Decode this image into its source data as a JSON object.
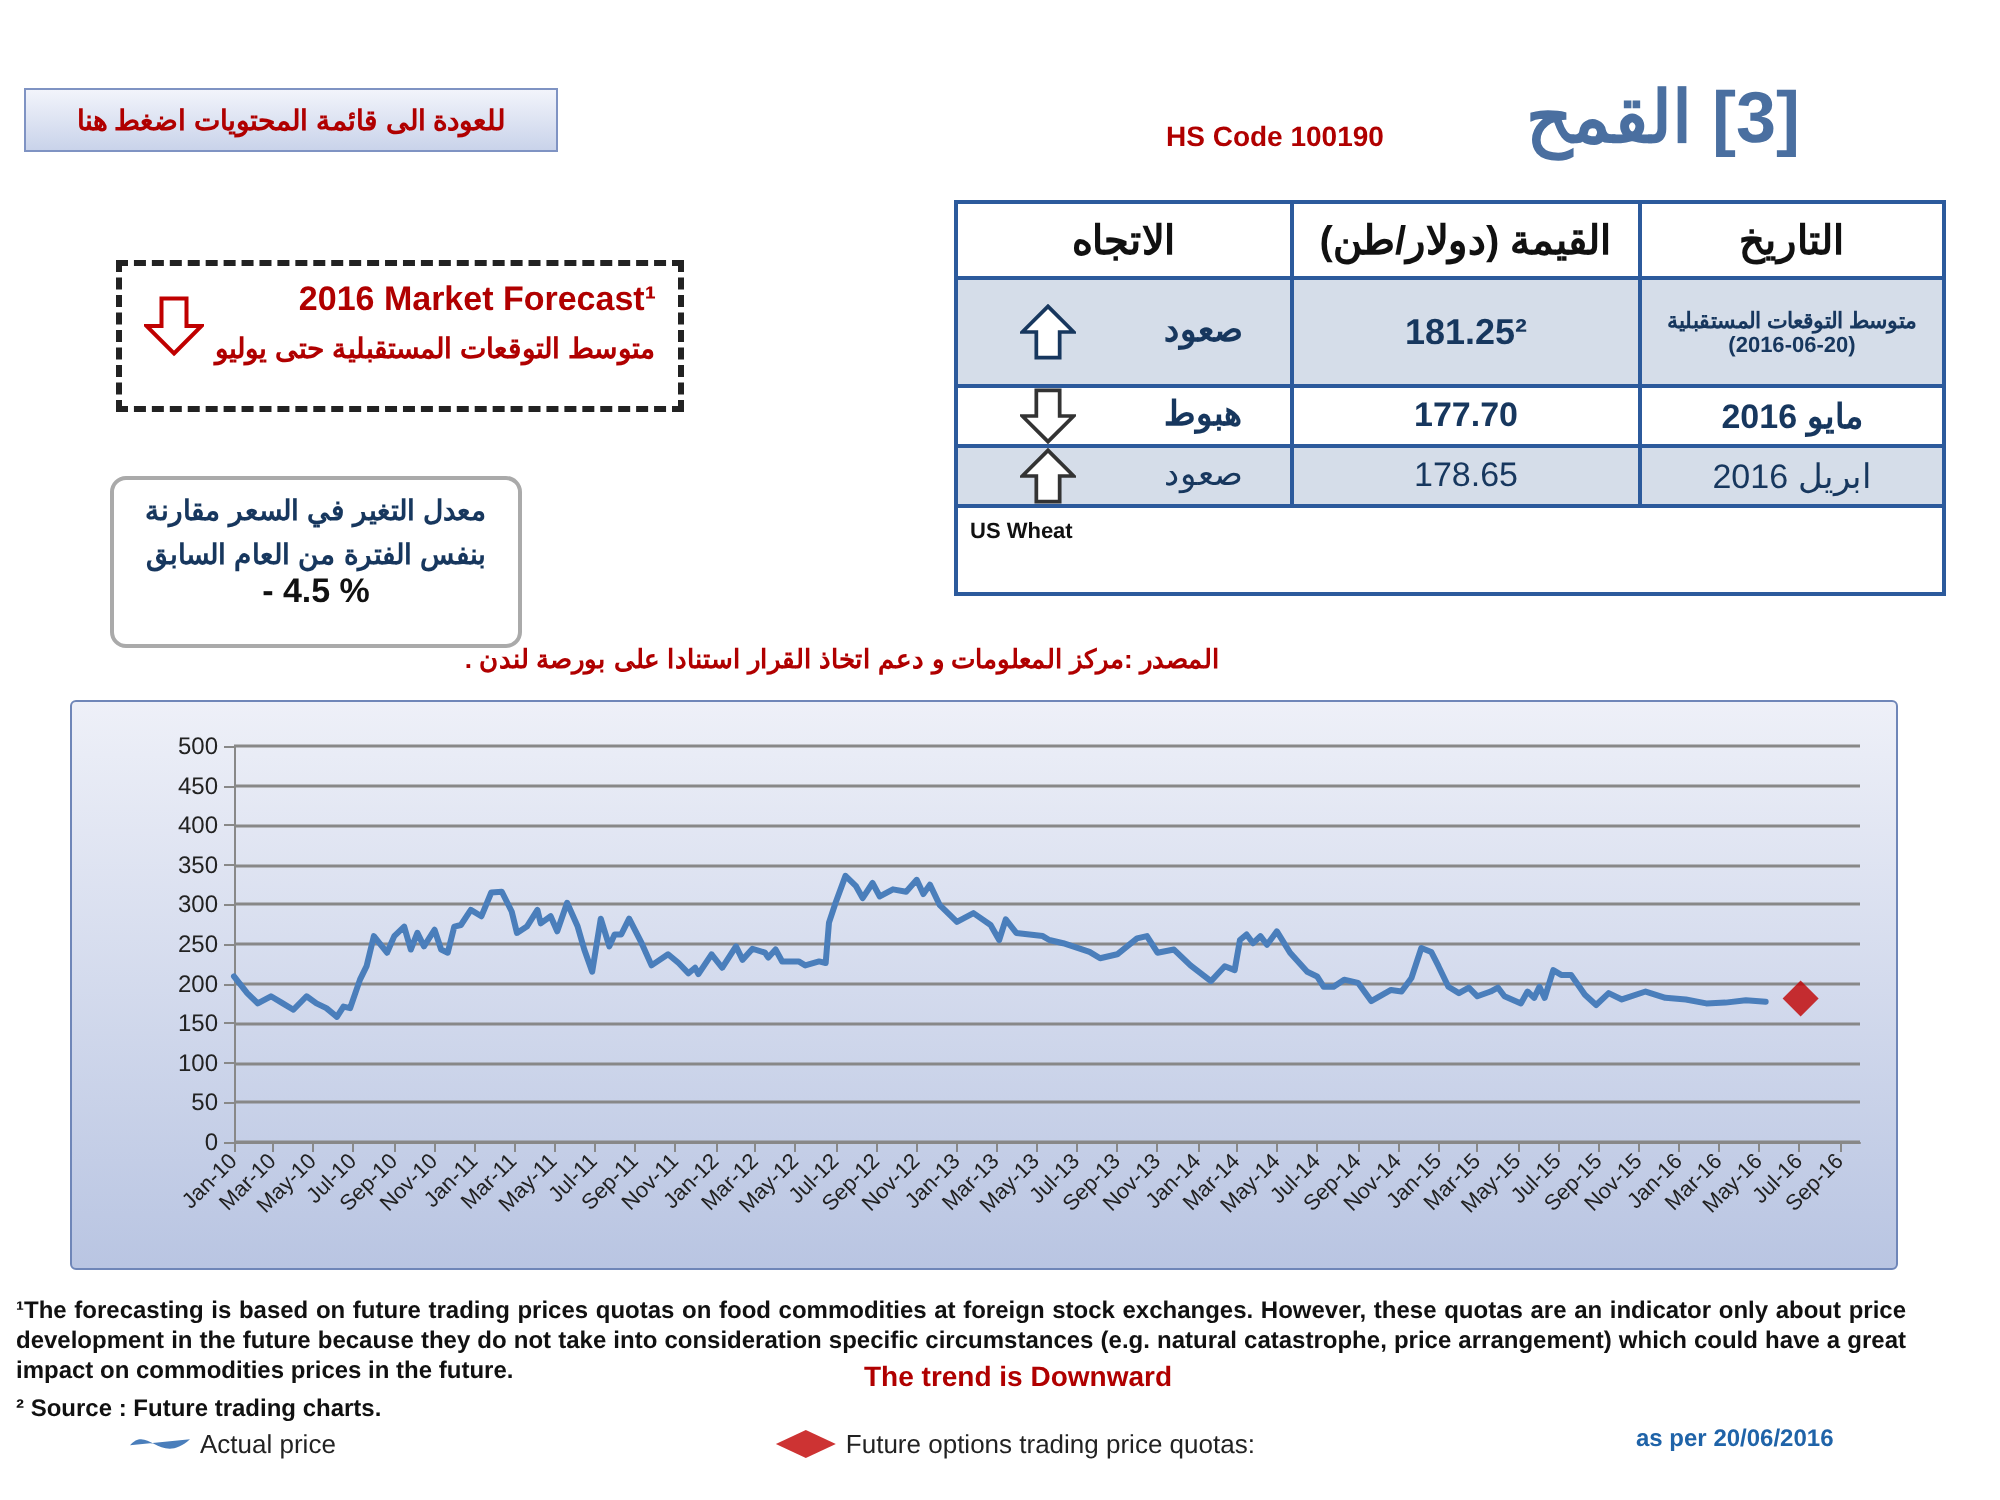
{
  "chart_data": {
    "type": "line",
    "title": "[3] القمح",
    "annotations": [
      "للعودة الى قائمة المحتويات اضغط هنا",
      "HS Code 100190",
      "2016 Market Forecast¹",
      "متوسط التوقعات المستقبلية حتى يوليو",
      "معدل التغير في السعر مقارنة بنفس الفترة من العام السابق",
      "- 4.5 %",
      "المصدر :مركز المعلومات و دعم اتخاذ القرار استنادا على بورصة لندن .",
      "التاريخ",
      "القيمة (دولار/طن)",
      "الاتجاه",
      "متوسط التوقعات المستقبلية (20-06-2016)",
      "181.25²",
      "صعود",
      "مايو 2016",
      "177.70",
      "هبوط",
      "ابريل 2016",
      "178.65",
      "صعود",
      "US Wheat",
      "¹The forecasting is based on future trading prices quotas on food commodities at foreign stock exchanges. However, these quotas are an indicator only about price development in the future because they do not take into consideration specific circumstances (e.g. natural catastrophe, price arrangement) which could have a great impact on commodities prices in the future.",
      "The trend is Downward",
      "² Source : Future trading charts.",
      "as per 20/06/2016"
    ],
    "xlim": [
      "2010-01",
      "2016-10"
    ],
    "xticks": [
      {
        "value": "2010-01",
        "label": "Jan-10"
      },
      {
        "value": "2010-03",
        "label": "Mar-10"
      },
      {
        "value": "2010-05",
        "label": "May-10"
      },
      {
        "value": "2010-07",
        "label": "Jul-10"
      },
      {
        "value": "2010-09",
        "label": "Sep-10"
      },
      {
        "value": "2010-11",
        "label": "Nov-10"
      },
      {
        "value": "2011-01",
        "label": "Jan-11"
      },
      {
        "value": "2011-03",
        "label": "Mar-11"
      },
      {
        "value": "2011-05",
        "label": "May-11"
      },
      {
        "value": "2011-07",
        "label": "Jul-11"
      },
      {
        "value": "2011-09",
        "label": "Sep-11"
      },
      {
        "value": "2011-11",
        "label": "Nov-11"
      },
      {
        "value": "2012-01",
        "label": "Jan-12"
      },
      {
        "value": "2012-03",
        "label": "Mar-12"
      },
      {
        "value": "2012-05",
        "label": "May-12"
      },
      {
        "value": "2012-07",
        "label": "Jul-12"
      },
      {
        "value": "2012-09",
        "label": "Sep-12"
      },
      {
        "value": "2012-11",
        "label": "Nov-12"
      },
      {
        "value": "2013-01",
        "label": "Jan-13"
      },
      {
        "value": "2013-03",
        "label": "Mar-13"
      },
      {
        "value": "2013-05",
        "label": "May-13"
      },
      {
        "value": "2013-07",
        "label": "Jul-13"
      },
      {
        "value": "2013-09",
        "label": "Sep-13"
      },
      {
        "value": "2013-11",
        "label": "Nov-13"
      },
      {
        "value": "2014-01",
        "label": "Jan-14"
      },
      {
        "value": "2014-03",
        "label": "Mar-14"
      },
      {
        "value": "2014-05",
        "label": "May-14"
      },
      {
        "value": "2014-07",
        "label": "Jul-14"
      },
      {
        "value": "2014-09",
        "label": "Sep-14"
      },
      {
        "value": "2014-11",
        "label": "Nov-14"
      },
      {
        "value": "2015-01",
        "label": "Jan-15"
      },
      {
        "value": "2015-03",
        "label": "Mar-15"
      },
      {
        "value": "2015-05",
        "label": "May-15"
      },
      {
        "value": "2015-07",
        "label": "Jul-15"
      },
      {
        "value": "2015-09",
        "label": "Sep-15"
      },
      {
        "value": "2015-11",
        "label": "Nov-15"
      },
      {
        "value": "2016-01",
        "label": "Jan-16"
      },
      {
        "value": "2016-03",
        "label": "Mar-16"
      },
      {
        "value": "2016-05",
        "label": "May-16"
      },
      {
        "value": "2016-07",
        "label": "Jul-16"
      },
      {
        "value": "2016-09",
        "label": "Sep-16"
      }
    ],
    "ylim": [
      0,
      500
    ],
    "yticks": [
      0,
      50,
      100,
      150,
      200,
      250,
      300,
      350,
      400,
      450,
      500
    ],
    "grid": "y",
    "legend": "bottom",
    "marker": "none",
    "line_style": "solid",
    "series": [
      {
        "name": "Actual price",
        "color": "#4a7ebb",
        "x": [
          "2010-01-01",
          "2010-01-21",
          "2010-02-06",
          "2010-02-26",
          "2010-03-16",
          "2010-04-01",
          "2010-04-21",
          "2010-05-06",
          "2010-05-21",
          "2010-06-06",
          "2010-06-16",
          "2010-06-26",
          "2010-07-11",
          "2010-07-21",
          "2010-08-01",
          "2010-08-21",
          "2010-09-01",
          "2010-09-16",
          "2010-09-26",
          "2010-10-06",
          "2010-10-16",
          "2010-11-01",
          "2010-11-11",
          "2010-11-21",
          "2010-12-01",
          "2010-12-11",
          "2010-12-26",
          "2011-01-11",
          "2011-01-26",
          "2011-02-11",
          "2011-02-26",
          "2011-03-06",
          "2011-03-21",
          "2011-04-06",
          "2011-04-11",
          "2011-04-26",
          "2011-05-06",
          "2011-05-21",
          "2011-06-06",
          "2011-06-16",
          "2011-06-28",
          "2011-07-11",
          "2011-07-24",
          "2011-08-01",
          "2011-08-11",
          "2011-08-23",
          "2011-09-11",
          "2011-09-26",
          "2011-10-21",
          "2011-11-06",
          "2011-11-21",
          "2011-12-01",
          "2011-12-06",
          "2011-12-26",
          "2012-01-11",
          "2012-02-01",
          "2012-02-11",
          "2012-02-26",
          "2012-03-16",
          "2012-03-21",
          "2012-04-01",
          "2012-04-11",
          "2012-05-06",
          "2012-05-16",
          "2012-06-06",
          "2012-06-16",
          "2012-06-21",
          "2012-07-01",
          "2012-07-16",
          "2012-08-01",
          "2012-08-11",
          "2012-08-26",
          "2012-09-06",
          "2012-09-26",
          "2012-10-16",
          "2012-11-01",
          "2012-11-11",
          "2012-11-21",
          "2012-12-06",
          "2013-01-01",
          "2013-01-26",
          "2013-02-21",
          "2013-03-06",
          "2013-03-16",
          "2013-04-01",
          "2013-05-11",
          "2013-05-21",
          "2013-06-11",
          "2013-07-21",
          "2013-08-06",
          "2013-09-01",
          "2013-10-01",
          "2013-10-16",
          "2013-11-01",
          "2013-11-26",
          "2013-12-21",
          "2014-01-21",
          "2014-02-11",
          "2014-02-26",
          "2014-03-06",
          "2014-03-16",
          "2014-03-26",
          "2014-04-06",
          "2014-04-16",
          "2014-05-01",
          "2014-05-21",
          "2014-06-16",
          "2014-07-01",
          "2014-07-11",
          "2014-07-26",
          "2014-08-11",
          "2014-09-01",
          "2014-09-21",
          "2014-10-21",
          "2014-11-06",
          "2014-11-21",
          "2014-12-06",
          "2014-12-21",
          "2015-01-01",
          "2015-01-16",
          "2015-02-01",
          "2015-02-16",
          "2015-03-01",
          "2015-03-21",
          "2015-04-01",
          "2015-04-11",
          "2015-05-06",
          "2015-05-16",
          "2015-05-26",
          "2015-06-03",
          "2015-06-11",
          "2015-06-24",
          "2015-07-06",
          "2015-07-21",
          "2015-08-11",
          "2015-08-28",
          "2015-09-16",
          "2015-10-06",
          "2015-11-11",
          "2015-12-11",
          "2016-01-11",
          "2016-02-11",
          "2016-03-11",
          "2016-04-11",
          "2016-05-11"
        ],
        "values": [
          209,
          188,
          175,
          184,
          175,
          167,
          184,
          175,
          169,
          158,
          171,
          169,
          205,
          222,
          260,
          239,
          260,
          272,
          243,
          264,
          247,
          268,
          243,
          239,
          272,
          274,
          293,
          285,
          315,
          316,
          291,
          264,
          272,
          293,
          276,
          285,
          266,
          302,
          272,
          243,
          215,
          282,
          247,
          262,
          262,
          282,
          251,
          223,
          237,
          226,
          213,
          220,
          212,
          237,
          220,
          247,
          230,
          244,
          239,
          233,
          243,
          228,
          228,
          223,
          228,
          226,
          277,
          302,
          336,
          323,
          308,
          327,
          310,
          319,
          316,
          331,
          313,
          325,
          299,
          278,
          289,
          274,
          255,
          281,
          264,
          260,
          255,
          251,
          240,
          232,
          237,
          257,
          260,
          239,
          243,
          223,
          203,
          222,
          217,
          255,
          262,
          251,
          260,
          249,
          266,
          239,
          215,
          209,
          196,
          196,
          205,
          201,
          178,
          192,
          190,
          207,
          245,
          240,
          222,
          196,
          188,
          195,
          184,
          190,
          195,
          184,
          175,
          190,
          182,
          196,
          182,
          217,
          211,
          211,
          186,
          173,
          188,
          180,
          190,
          182,
          180,
          175,
          176,
          179,
          177
        ]
      },
      {
        "name": "Future options trading price quotas:",
        "type": "scatter",
        "marker": "diamond",
        "color": "#c00000",
        "x": [
          "2016-07-03"
        ],
        "values": [
          181.25
        ]
      }
    ]
  }
}
